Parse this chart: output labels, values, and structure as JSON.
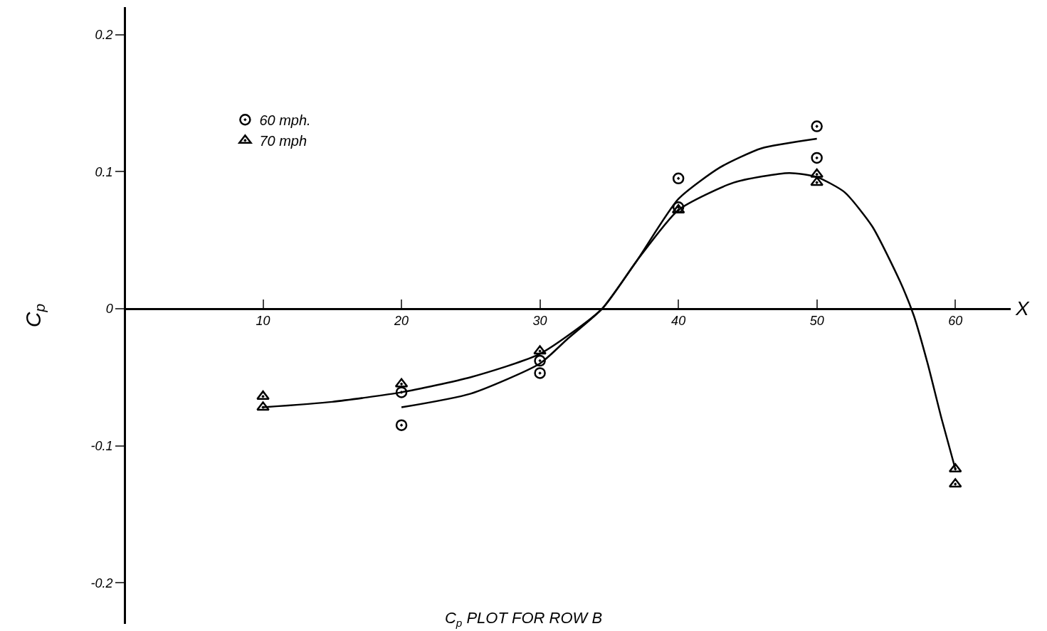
{
  "chart_data": {
    "type": "scatter",
    "title": "C$_{p}$ PLOT FOR ROW B",
    "xlabel": "X",
    "ylabel": "C$_{p}$",
    "xlim": [
      0,
      64
    ],
    "xticks": [
      10,
      20,
      30,
      40,
      50,
      60
    ],
    "ylim": [
      -0.23,
      0.22
    ],
    "yticks": [
      -0.2,
      -0.1,
      0,
      0.1,
      0.2
    ],
    "grid": false,
    "legend": "top left",
    "series": [
      {
        "name": "60 mph.",
        "marker": "circle",
        "color": "#000000",
        "x": [
          20,
          20,
          30,
          30,
          40,
          40,
          50,
          50
        ],
        "values": [
          -0.085,
          -0.061,
          -0.038,
          -0.047,
          0.095,
          0.074,
          0.133,
          0.11
        ]
      },
      {
        "name": "70 mph",
        "marker": "triangle",
        "color": "#000000",
        "x": [
          10,
          10,
          20,
          30,
          40,
          50,
          50,
          60,
          60
        ],
        "values": [
          -0.064,
          -0.072,
          -0.055,
          -0.031,
          0.072,
          0.098,
          0.092,
          -0.117,
          -0.128
        ]
      },
      {
        "type": "line",
        "line_style": "solid",
        "color": "#000000",
        "x": [
          20,
          25,
          30,
          32,
          34.5,
          37,
          40,
          43,
          46,
          50
        ],
        "values": [
          -0.072,
          -0.062,
          -0.04,
          -0.022,
          0,
          0.035,
          0.08,
          0.103,
          0.117,
          0.124
        ]
      },
      {
        "type": "line",
        "line_style": "solid",
        "color": "#000000",
        "x": [
          10,
          15,
          20,
          25,
          30,
          34.5,
          37,
          40,
          44,
          48,
          50,
          52,
          54,
          56,
          57,
          58,
          59,
          60
        ],
        "values": [
          -0.072,
          -0.068,
          -0.061,
          -0.05,
          -0.033,
          0,
          0.035,
          0.072,
          0.092,
          0.099,
          0.096,
          0.085,
          0.06,
          0.02,
          -0.005,
          -0.04,
          -0.08,
          -0.117
        ]
      }
    ]
  }
}
